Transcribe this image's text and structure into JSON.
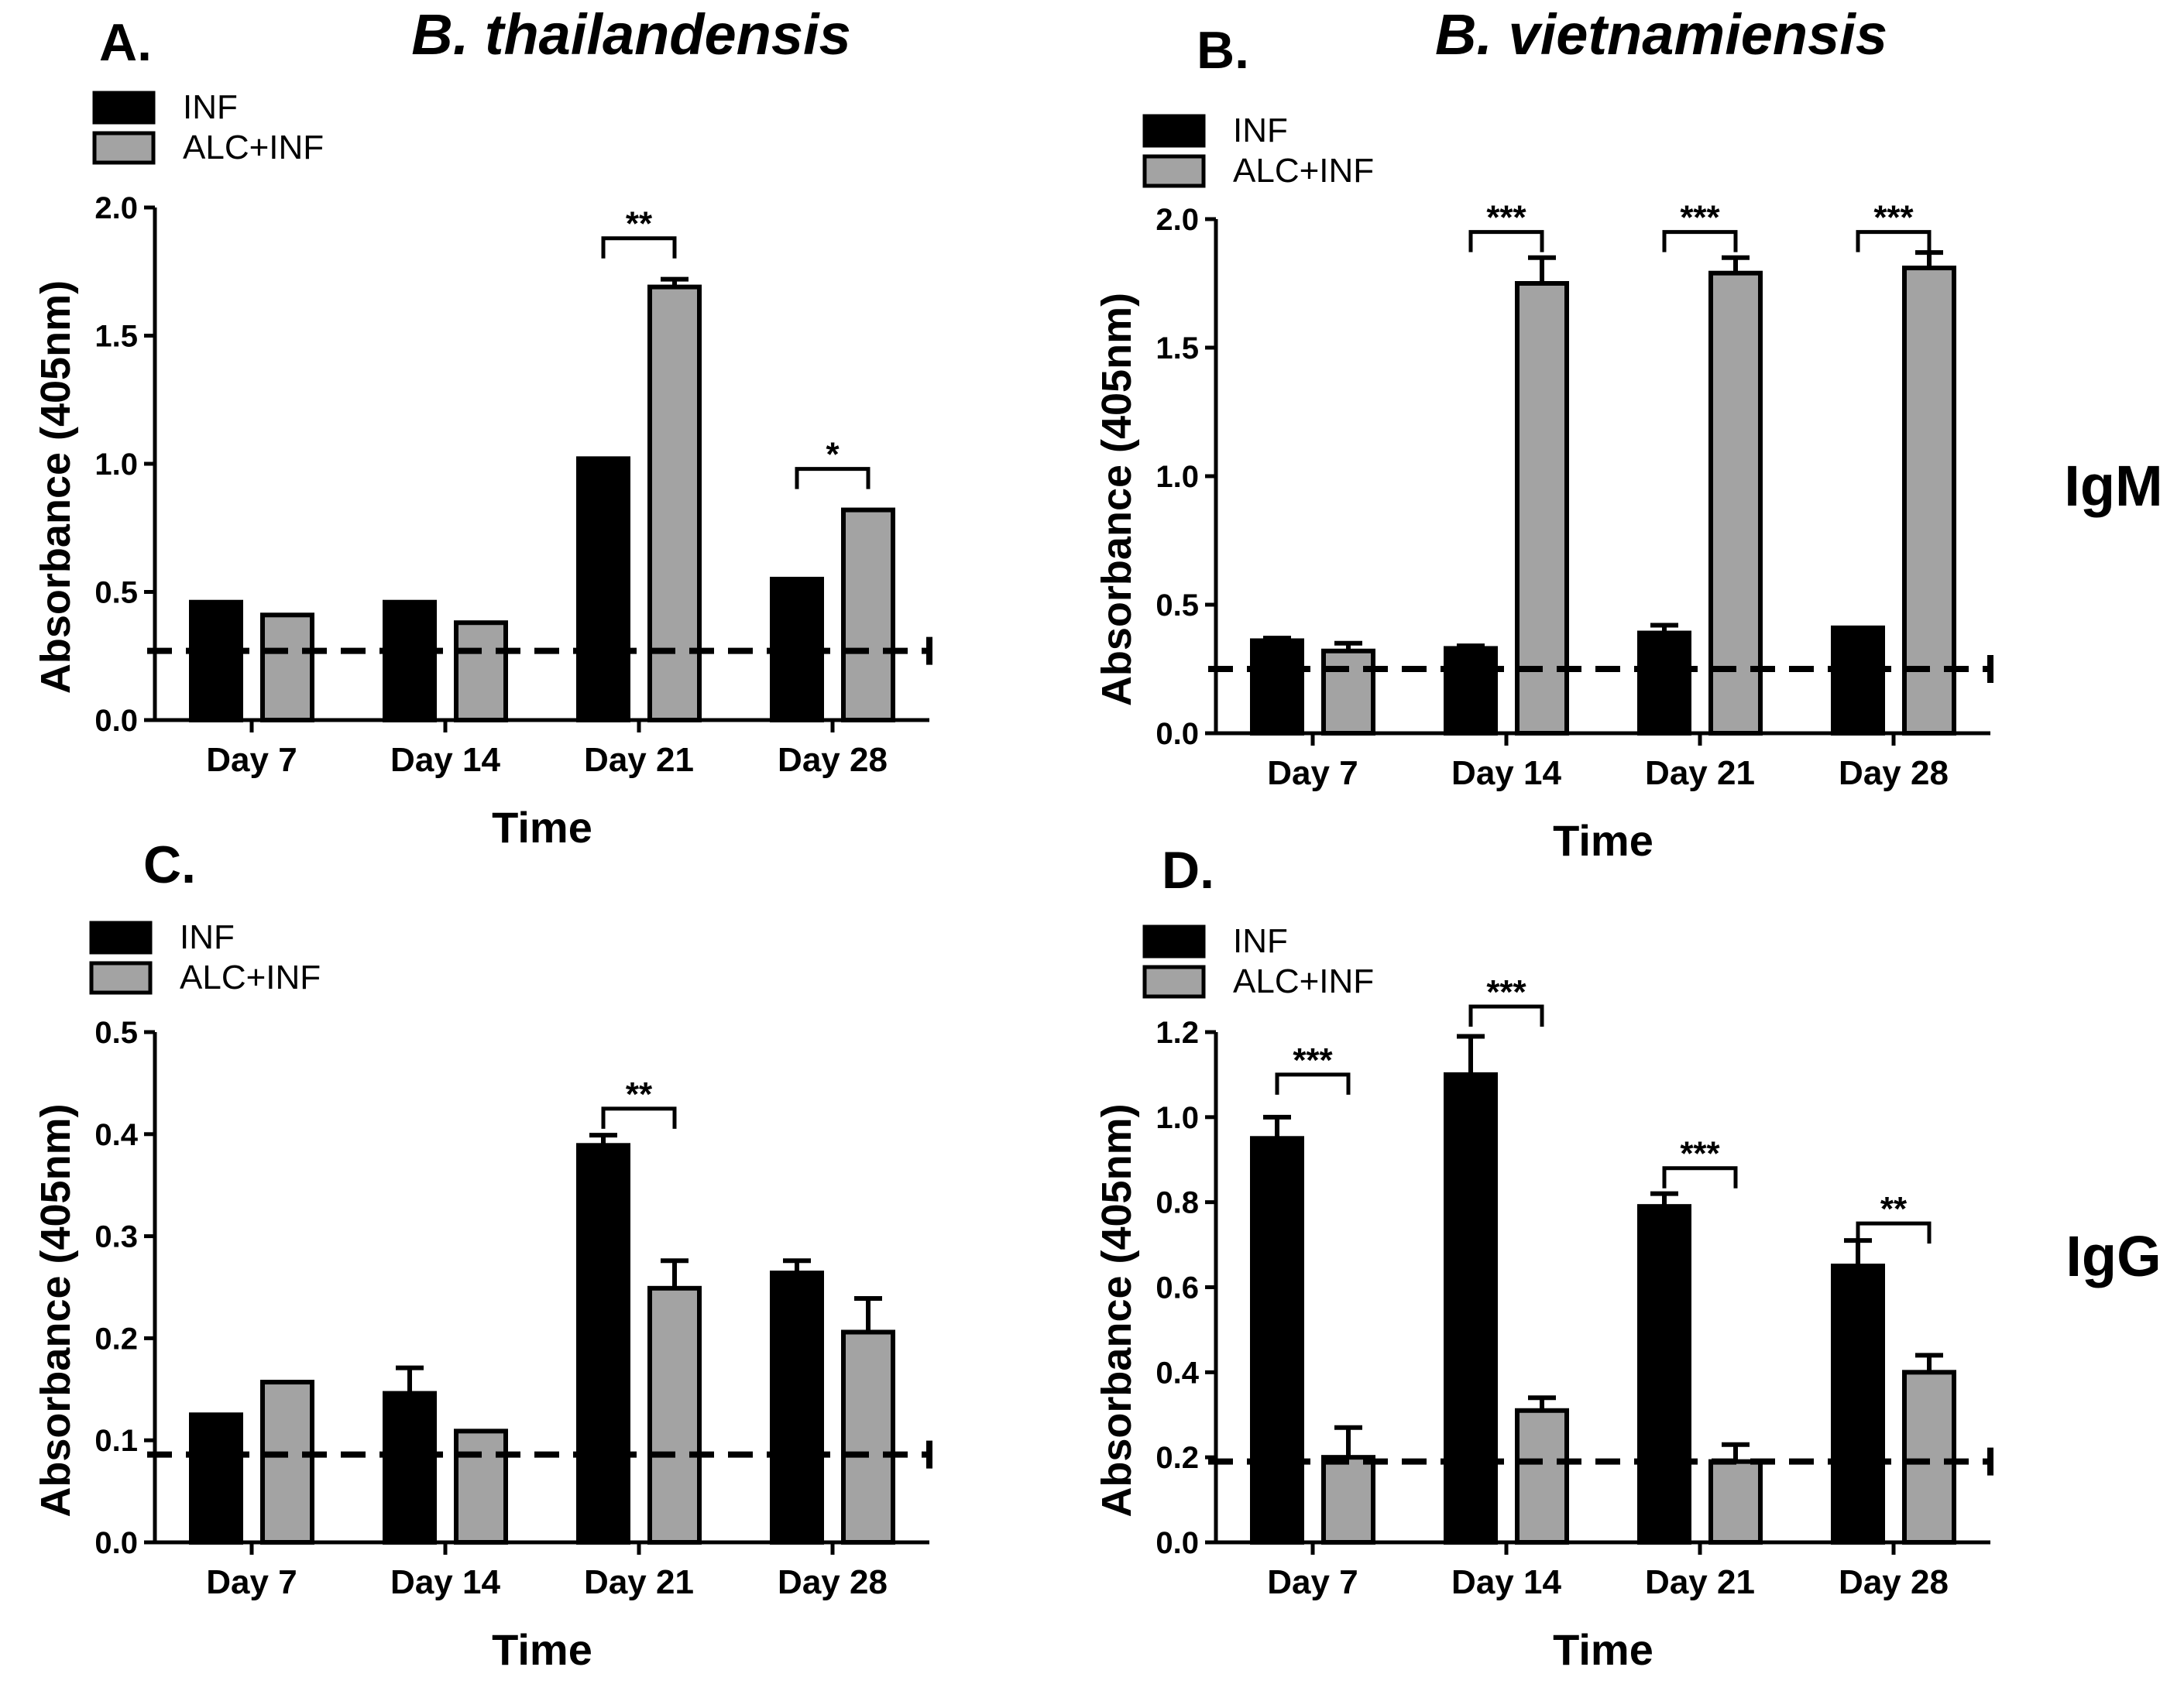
{
  "figure": {
    "species_left": "B. thailandensis",
    "species_right": "B. vietnamiensis",
    "row_labels": [
      "IgM",
      "IgG"
    ]
  },
  "colors": {
    "INF": "#000000",
    "ALC+INF": "#a3a3a3",
    "cutoff_line": "#000000"
  },
  "chart_data": [
    {
      "panel": "A.",
      "type": "bar",
      "categories": [
        "Day 7",
        "Day 14",
        "Day 21",
        "Day 28"
      ],
      "series": [
        {
          "name": "INF",
          "values": [
            0.46,
            0.46,
            1.02,
            0.55
          ],
          "errors": [
            0.0,
            0.0,
            0.0,
            0.0
          ]
        },
        {
          "name": "ALC+INF",
          "values": [
            0.41,
            0.38,
            1.69,
            0.82
          ],
          "errors": [
            0.0,
            0.0,
            0.03,
            0.0
          ]
        }
      ],
      "cutoff": 0.27,
      "xlabel": "Time",
      "ylabel": "Absorbance (405nm)",
      "ylim": [
        0,
        2.0
      ],
      "yticks": [
        "0.0",
        "0.5",
        "1.0",
        "1.5",
        "2.0"
      ],
      "significance": [
        {
          "category": 2,
          "label": "**",
          "y": 1.88
        },
        {
          "category": 3,
          "label": "*",
          "y": 0.98
        }
      ]
    },
    {
      "panel": "B.",
      "type": "bar",
      "categories": [
        "Day 7",
        "Day 14",
        "Day 21",
        "Day 28"
      ],
      "series": [
        {
          "name": "INF",
          "values": [
            0.36,
            0.33,
            0.39,
            0.41
          ],
          "errors": [
            0.01,
            0.01,
            0.03,
            0.0
          ]
        },
        {
          "name": "ALC+INF",
          "values": [
            0.32,
            1.75,
            1.79,
            1.81
          ],
          "errors": [
            0.03,
            0.1,
            0.06,
            0.06
          ]
        }
      ],
      "cutoff": 0.25,
      "xlabel": "Time",
      "ylabel": "Absorbance (405nm)",
      "ylim": [
        0,
        2.0
      ],
      "yticks": [
        "0.0",
        "0.5",
        "1.0",
        "1.5",
        "2.0"
      ],
      "significance": [
        {
          "category": 1,
          "label": "***",
          "y": 1.95
        },
        {
          "category": 2,
          "label": "***",
          "y": 1.95
        },
        {
          "category": 3,
          "label": "***",
          "y": 1.95
        }
      ]
    },
    {
      "panel": "C.",
      "type": "bar",
      "categories": [
        "Day 7",
        "Day 14",
        "Day 21",
        "Day 28"
      ],
      "series": [
        {
          "name": "INF",
          "values": [
            0.125,
            0.146,
            0.389,
            0.264
          ],
          "errors": [
            0.0,
            0.025,
            0.01,
            0.012
          ]
        },
        {
          "name": "ALC+INF",
          "values": [
            0.157,
            0.109,
            0.249,
            0.206
          ],
          "errors": [
            0.0,
            0.0,
            0.027,
            0.033
          ]
        }
      ],
      "cutoff": 0.086,
      "xlabel": "Time",
      "ylabel": "Absorbance (405nm)",
      "ylim": [
        0,
        0.5
      ],
      "yticks": [
        "0.0",
        "0.1",
        "0.2",
        "0.3",
        "0.4",
        "0.5"
      ],
      "significance": [
        {
          "category": 2,
          "label": "**",
          "y": 0.425
        }
      ]
    },
    {
      "panel": "D.",
      "type": "bar",
      "categories": [
        "Day 7",
        "Day 14",
        "Day 21",
        "Day 28"
      ],
      "series": [
        {
          "name": "INF",
          "values": [
            0.95,
            1.1,
            0.79,
            0.65
          ],
          "errors": [
            0.05,
            0.09,
            0.03,
            0.06
          ]
        },
        {
          "name": "ALC+INF",
          "values": [
            0.2,
            0.31,
            0.19,
            0.4
          ],
          "errors": [
            0.07,
            0.03,
            0.04,
            0.04
          ]
        }
      ],
      "cutoff": 0.19,
      "xlabel": "Time",
      "ylabel": "Absorbance (405nm)",
      "ylim": [
        0,
        1.2
      ],
      "yticks": [
        "0.0",
        "0.2",
        "0.4",
        "0.6",
        "0.8",
        "1.0",
        "1.2"
      ],
      "significance": [
        {
          "category": 0,
          "label": "***",
          "y": 1.1
        },
        {
          "category": 1,
          "label": "***",
          "y": 1.26
        },
        {
          "category": 2,
          "label": "***",
          "y": 0.88
        },
        {
          "category": 3,
          "label": "**",
          "y": 0.75
        }
      ]
    }
  ]
}
